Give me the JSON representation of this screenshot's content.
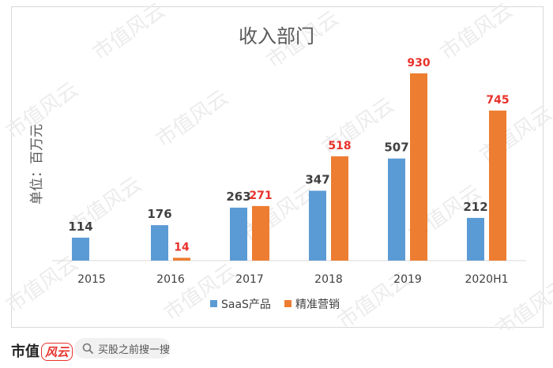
{
  "watermark": "市值风云",
  "chart_data": {
    "type": "bar",
    "title": "收入部门",
    "ylabel": "单位：百万元",
    "categories": [
      "2015",
      "2016",
      "2017",
      "2018",
      "2019",
      "2020H1"
    ],
    "ylim": [
      0,
      1000
    ],
    "grid": false,
    "legend_position": "bottom",
    "series": [
      {
        "name": "SaaS产品",
        "color": "#5b9bd5",
        "label_color": "#404040",
        "values": [
          114,
          176,
          263,
          347,
          507,
          212
        ],
        "labels": [
          "114",
          "176",
          "263",
          "347",
          "507",
          "212"
        ]
      },
      {
        "name": "精准营销",
        "color": "#ed7d31",
        "label_color": "#e8322c",
        "values": [
          null,
          14,
          271,
          518,
          930,
          745
        ],
        "labels": [
          "",
          "14",
          "271",
          "518",
          "930",
          "745"
        ]
      }
    ]
  },
  "footer": {
    "brand": "市值",
    "brand_mark": "风云",
    "search_placeholder": "买股之前搜一搜"
  }
}
